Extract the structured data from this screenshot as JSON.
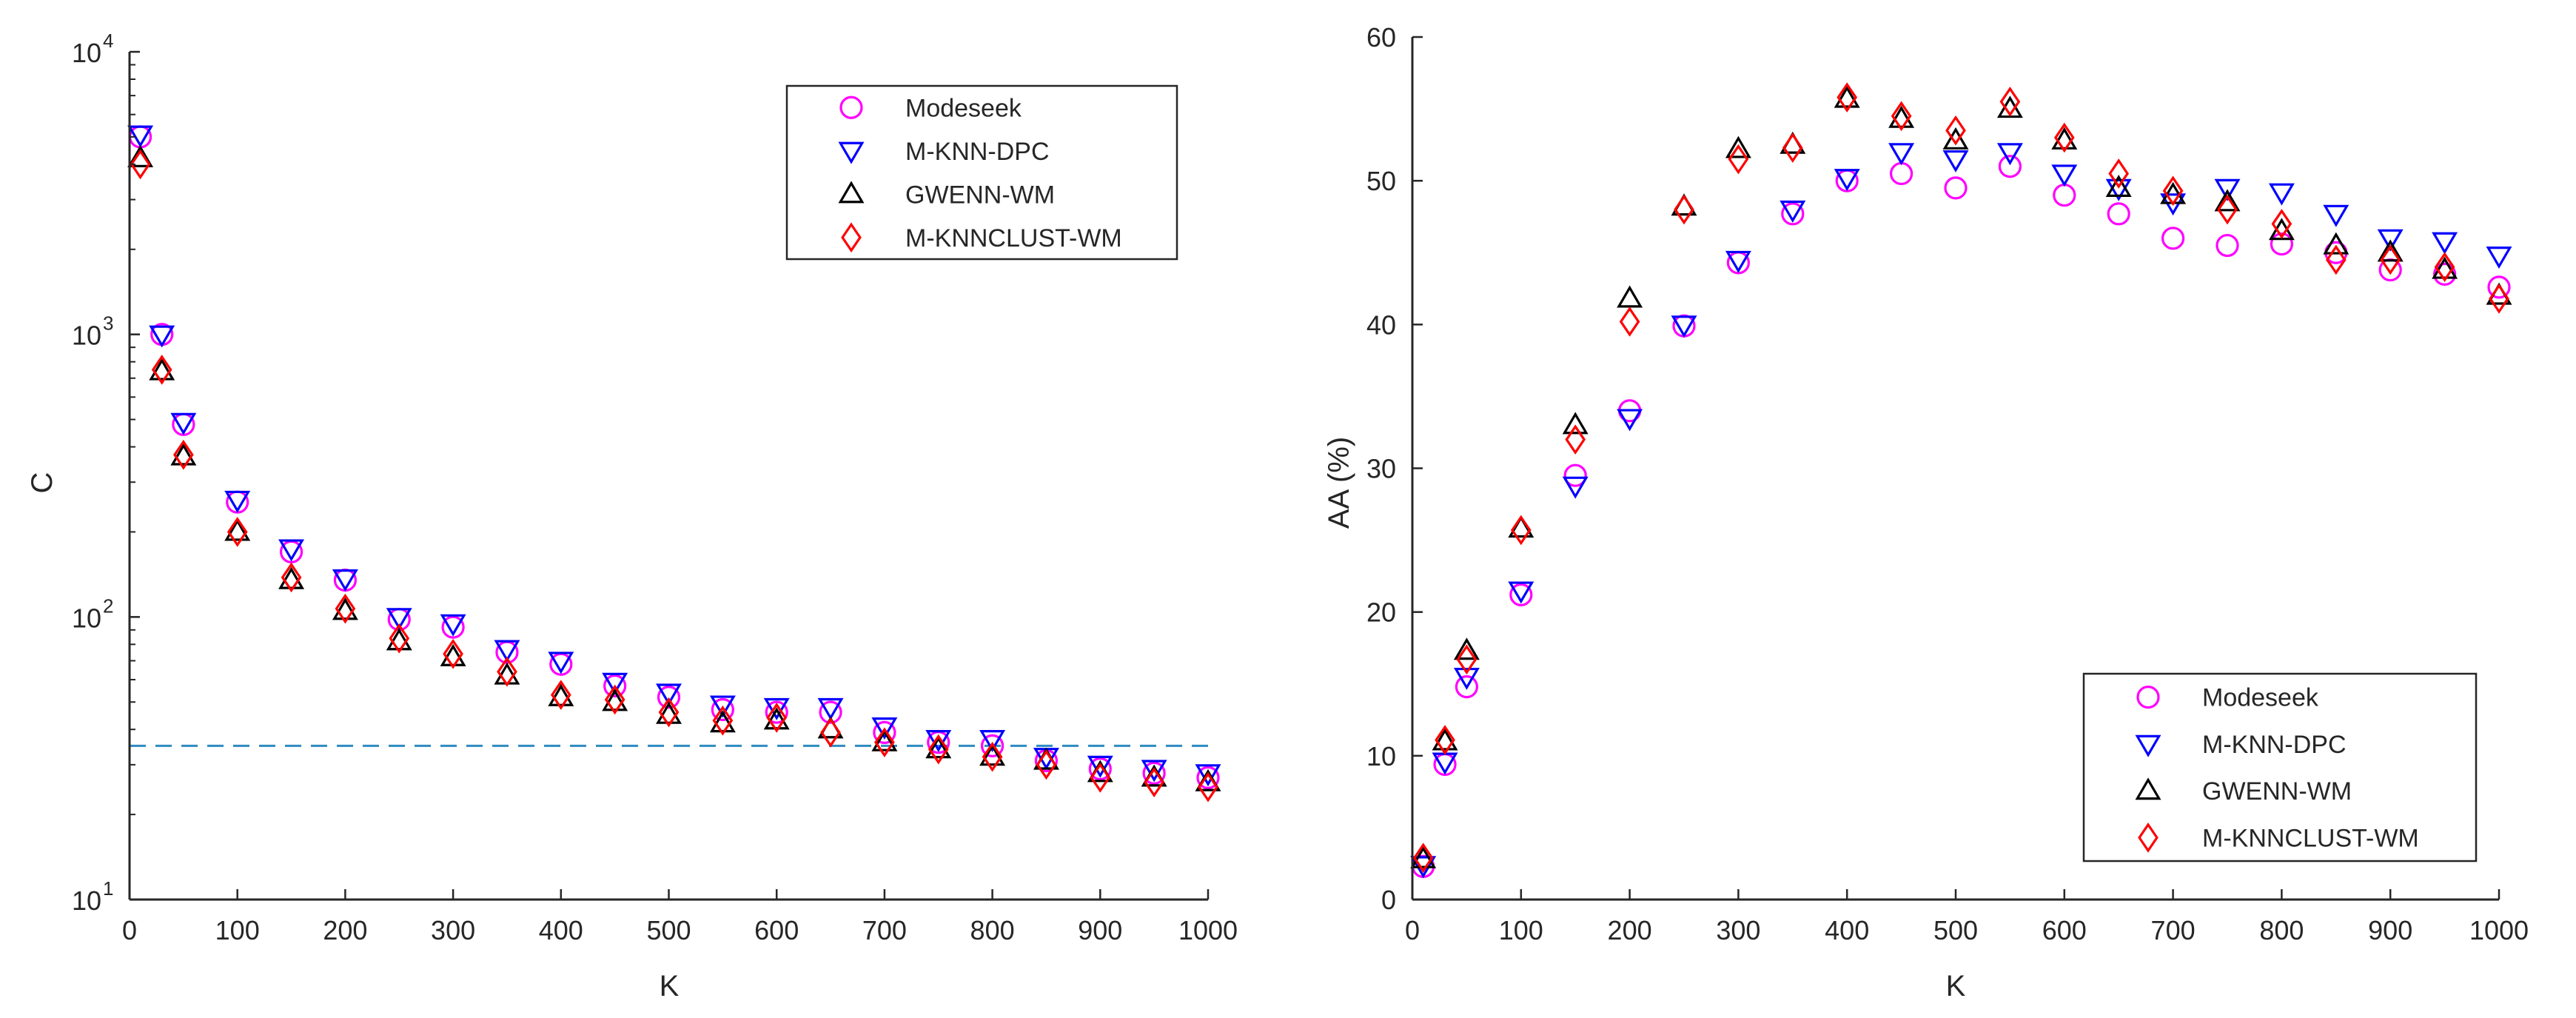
{
  "chart_data": [
    {
      "type": "scatter",
      "title": "",
      "xlabel": "K",
      "ylabel": "C",
      "yscale": "log",
      "xlim": [
        0,
        1000
      ],
      "ylim": [
        10,
        10000
      ],
      "x_ticks": [
        "0",
        "100",
        "200",
        "300",
        "400",
        "500",
        "600",
        "700",
        "800",
        "900",
        "1000"
      ],
      "y_ticks": [
        {
          "base": "10",
          "exp": "1"
        },
        {
          "base": "10",
          "exp": "2"
        },
        {
          "base": "10",
          "exp": "3"
        },
        {
          "base": "10",
          "exp": "4"
        }
      ],
      "grid": false,
      "legend_position": "top-right",
      "reference_line": {
        "y": 35,
        "style": "dashed",
        "color": "#2e8bc0"
      },
      "x": [
        10,
        30,
        50,
        100,
        150,
        200,
        250,
        300,
        350,
        400,
        450,
        500,
        550,
        600,
        650,
        700,
        750,
        800,
        850,
        900,
        950,
        1000
      ],
      "series": [
        {
          "name": "Modeseek",
          "marker": "circle",
          "color": "#ff00ff",
          "values": [
            5000,
            1000,
            480,
            255,
            170,
            135,
            98,
            92,
            75,
            68,
            57,
            52,
            47,
            46,
            46,
            39,
            36,
            35,
            31,
            29,
            28,
            27
          ]
        },
        {
          "name": "M-KNN-DPC",
          "marker": "triangle-down",
          "color": "#0000ff",
          "values": [
            5100,
            1000,
            490,
            260,
            175,
            137,
            100,
            95,
            77,
            70,
            59,
            54,
            49,
            48,
            48,
            41,
            37,
            37,
            32,
            30,
            29,
            28
          ]
        },
        {
          "name": "GWENN-WM",
          "marker": "triangle-up",
          "color": "#000000",
          "values": [
            4200,
            740,
            370,
            200,
            135,
            105,
            82,
            72,
            62,
            52,
            50,
            45,
            42,
            43,
            40,
            36,
            34,
            32,
            31,
            28,
            27,
            26
          ]
        },
        {
          "name": "M-KNNCLUST-WM",
          "marker": "diamond",
          "color": "#ff0000",
          "values": [
            4000,
            750,
            375,
            200,
            138,
            107,
            84,
            74,
            64,
            53,
            51,
            46,
            43,
            44,
            39,
            36,
            34,
            32,
            30,
            27,
            26,
            25
          ]
        }
      ]
    },
    {
      "type": "scatter",
      "title": "",
      "xlabel": "K",
      "ylabel": "AA (%)",
      "yscale": "linear",
      "xlim": [
        0,
        1000
      ],
      "ylim": [
        0,
        60
      ],
      "x_ticks": [
        "0",
        "100",
        "200",
        "300",
        "400",
        "500",
        "600",
        "700",
        "800",
        "900",
        "1000"
      ],
      "y_ticks": [
        "0",
        "10",
        "20",
        "30",
        "40",
        "50",
        "60"
      ],
      "grid": false,
      "legend_position": "bottom-right",
      "x": [
        10,
        30,
        50,
        100,
        150,
        200,
        250,
        300,
        350,
        400,
        450,
        500,
        550,
        600,
        650,
        700,
        750,
        800,
        850,
        900,
        950,
        1000
      ],
      "series": [
        {
          "name": "Modeseek",
          "marker": "circle",
          "color": "#ff00ff",
          "values": [
            2.3,
            9.4,
            14.8,
            21.2,
            29.5,
            34.0,
            39.9,
            44.3,
            47.7,
            50.0,
            50.5,
            49.5,
            51.0,
            49.0,
            47.7,
            46.0,
            45.5,
            45.6,
            45.0,
            43.8,
            43.5,
            42.6
          ]
        },
        {
          "name": "M-KNN-DPC",
          "marker": "triangle-down",
          "color": "#0000ff",
          "values": [
            2.4,
            9.6,
            15.5,
            21.5,
            28.8,
            33.5,
            40.0,
            44.5,
            48.0,
            50.2,
            52.0,
            51.5,
            52.0,
            50.5,
            49.5,
            48.5,
            49.5,
            49.2,
            47.7,
            46.0,
            45.8,
            44.8
          ]
        },
        {
          "name": "GWENN-WM",
          "marker": "triangle-up",
          "color": "#000000",
          "values": [
            2.8,
            11.0,
            17.3,
            25.8,
            33.0,
            41.8,
            48.2,
            52.2,
            52.5,
            55.7,
            54.3,
            52.8,
            55.0,
            52.8,
            49.5,
            49.0,
            48.5,
            46.5,
            45.5,
            45.0,
            43.8,
            42.0
          ]
        },
        {
          "name": "M-KNNCLUST-WM",
          "marker": "diamond",
          "color": "#ff0000",
          "values": [
            2.9,
            11.1,
            16.7,
            25.7,
            32.0,
            40.2,
            48.0,
            51.5,
            52.3,
            55.8,
            54.5,
            53.5,
            55.5,
            53.0,
            50.5,
            49.3,
            48.0,
            47.0,
            44.5,
            44.5,
            44.0,
            41.8
          ]
        }
      ]
    }
  ]
}
